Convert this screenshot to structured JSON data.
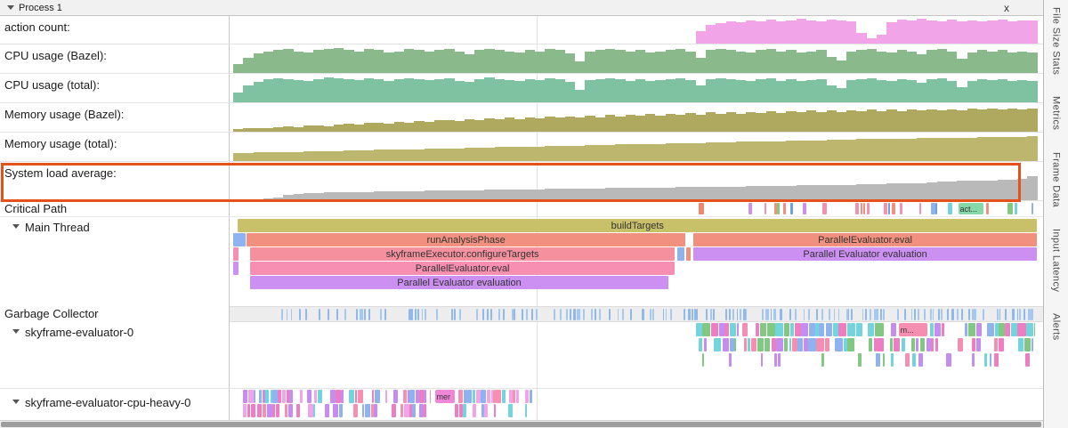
{
  "header": {
    "process_label": "Process 1",
    "close_label": "x"
  },
  "sidebar_tabs": [
    {
      "label": "File Size Stats"
    },
    {
      "label": "Metrics"
    },
    {
      "label": "Frame Data"
    },
    {
      "label": "Input Latency"
    },
    {
      "label": "Alerts"
    }
  ],
  "highlight": {
    "track": "System load average:",
    "color": "#e4511a"
  },
  "counters": [
    {
      "name": "action count:",
      "color": "#f2a4e8",
      "scale": 0.95,
      "heights": [
        0,
        0,
        0,
        0,
        0,
        0,
        0,
        0,
        0,
        0,
        0,
        0,
        0,
        0,
        0,
        0,
        0,
        0,
        0,
        0,
        0,
        0,
        0,
        0,
        0,
        0,
        0,
        0,
        0,
        0,
        0,
        0,
        0,
        0,
        0,
        0,
        0,
        0,
        0,
        0,
        0,
        0,
        0,
        0,
        0,
        0,
        0.5,
        0.78,
        0.85,
        0.9,
        0.86,
        0.95,
        0.9,
        0.97,
        0.92,
        0.96,
        1,
        0.95,
        0.9,
        0.97,
        0.93,
        0.9,
        0.45,
        0.22,
        0.35,
        0.88,
        0.97,
        0.93,
        1,
        0.95,
        0.9,
        0.97,
        0.92,
        0.96,
        0.9,
        0.95,
        0.97,
        0.9,
        0.93,
        0.96
      ]
    },
    {
      "name": "CPU usage (Bazel):",
      "color": "#8aba8c",
      "scale": 0.95,
      "heights": [
        0.35,
        0.6,
        0.78,
        0.85,
        0.9,
        0.95,
        0.85,
        0.8,
        0.9,
        0.96,
        1,
        0.9,
        0.84,
        0.95,
        0.9,
        0.8,
        0.86,
        0.95,
        0.9,
        0.85,
        0.9,
        0.95,
        0.84,
        0.75,
        0.9,
        0.96,
        0.9,
        0.85,
        0.8,
        0.9,
        0.86,
        0.95,
        0.9,
        0.78,
        0.45,
        0.85,
        0.9,
        0.95,
        0.9,
        0.84,
        0.9,
        0.8,
        0.86,
        0.9,
        0.95,
        0.85,
        0.6,
        0.9,
        0.95,
        0.9,
        0.85,
        0.8,
        0.9,
        0.95,
        0.84,
        0.9,
        0.8,
        0.86,
        0.9,
        0.62,
        0.5,
        0.85,
        0.9,
        0.95,
        0.85,
        0.8,
        0.9,
        0.85,
        0.75,
        0.9,
        0.95,
        0.84,
        0.55,
        0.8,
        0.9,
        0.86,
        0.9,
        0.8,
        0.85,
        0.82
      ]
    },
    {
      "name": "CPU usage (total):",
      "color": "#7fc2a2",
      "scale": 0.95,
      "heights": [
        0.4,
        0.65,
        0.8,
        0.9,
        0.95,
        0.9,
        0.88,
        0.84,
        0.92,
        0.98,
        0.95,
        0.92,
        0.88,
        0.96,
        0.92,
        0.84,
        0.9,
        0.96,
        0.92,
        0.88,
        0.92,
        0.96,
        0.86,
        0.8,
        0.92,
        0.98,
        0.92,
        0.88,
        0.84,
        0.92,
        0.88,
        0.96,
        0.92,
        0.82,
        0.5,
        0.88,
        0.92,
        0.96,
        0.92,
        0.86,
        0.92,
        0.84,
        0.88,
        0.92,
        0.96,
        0.88,
        0.65,
        0.92,
        0.96,
        0.92,
        0.88,
        0.84,
        0.92,
        0.96,
        0.86,
        0.92,
        0.84,
        0.88,
        0.92,
        0.66,
        0.55,
        0.88,
        0.92,
        0.96,
        0.88,
        0.84,
        0.92,
        0.88,
        0.78,
        0.92,
        0.96,
        0.86,
        0.6,
        0.84,
        0.92,
        0.88,
        0.92,
        0.84,
        0.88,
        0.85
      ]
    },
    {
      "name": "Memory usage (Bazel):",
      "color": "#aea95f",
      "scale": 1,
      "heights": [
        0.1,
        0.12,
        0.15,
        0.13,
        0.18,
        0.2,
        0.17,
        0.22,
        0.25,
        0.2,
        0.28,
        0.3,
        0.26,
        0.32,
        0.35,
        0.3,
        0.38,
        0.35,
        0.4,
        0.36,
        0.42,
        0.45,
        0.4,
        0.48,
        0.44,
        0.5,
        0.46,
        0.52,
        0.48,
        0.55,
        0.5,
        0.56,
        0.52,
        0.58,
        0.54,
        0.6,
        0.55,
        0.62,
        0.57,
        0.64,
        0.6,
        0.66,
        0.61,
        0.68,
        0.63,
        0.7,
        0.65,
        0.72,
        0.66,
        0.74,
        0.68,
        0.75,
        0.7,
        0.76,
        0.71,
        0.78,
        0.72,
        0.79,
        0.74,
        0.8,
        0.75,
        0.81,
        0.76,
        0.82,
        0.77,
        0.83,
        0.78,
        0.84,
        0.79,
        0.85,
        0.8,
        0.85,
        0.81,
        0.86,
        0.82,
        0.86,
        0.83,
        0.87,
        0.84,
        0.88
      ]
    },
    {
      "name": "Memory usage (total):",
      "color": "#bcb66e",
      "scale": 1,
      "heights": [
        0.3,
        0.3,
        0.32,
        0.32,
        0.34,
        0.34,
        0.35,
        0.36,
        0.36,
        0.38,
        0.38,
        0.4,
        0.4,
        0.41,
        0.42,
        0.42,
        0.44,
        0.44,
        0.45,
        0.46,
        0.46,
        0.48,
        0.48,
        0.5,
        0.5,
        0.51,
        0.52,
        0.52,
        0.54,
        0.54,
        0.55,
        0.56,
        0.56,
        0.58,
        0.58,
        0.6,
        0.6,
        0.61,
        0.62,
        0.62,
        0.64,
        0.64,
        0.65,
        0.66,
        0.66,
        0.68,
        0.68,
        0.7,
        0.7,
        0.71,
        0.72,
        0.72,
        0.74,
        0.74,
        0.75,
        0.76,
        0.76,
        0.78,
        0.78,
        0.8,
        0.8,
        0.81,
        0.82,
        0.82,
        0.84,
        0.84,
        0.85,
        0.85,
        0.86,
        0.86,
        0.87,
        0.87,
        0.88,
        0.88,
        0.89,
        0.89,
        0.9,
        0.9,
        0.91,
        0.92
      ]
    },
    {
      "name": "System load average:",
      "color": "#b9b9b9",
      "scale": 0.72,
      "heights": [
        0.04,
        0.05,
        0.05,
        0.06,
        0.1,
        0.22,
        0.25,
        0.27,
        0.28,
        0.3,
        0.3,
        0.31,
        0.32,
        0.32,
        0.33,
        0.34,
        0.34,
        0.35,
        0.35,
        0.36,
        0.36,
        0.37,
        0.38,
        0.38,
        0.39,
        0.4,
        0.4,
        0.41,
        0.41,
        0.42,
        0.42,
        0.43,
        0.43,
        0.44,
        0.44,
        0.45,
        0.45,
        0.46,
        0.46,
        0.47,
        0.47,
        0.48,
        0.48,
        0.49,
        0.5,
        0.5,
        0.5,
        0.51,
        0.51,
        0.52,
        0.52,
        0.53,
        0.53,
        0.54,
        0.54,
        0.55,
        0.56,
        0.56,
        0.57,
        0.58,
        0.58,
        0.59,
        0.6,
        0.6,
        0.62,
        0.63,
        0.64,
        0.65,
        0.66,
        0.68,
        0.7,
        0.72,
        0.73,
        0.74,
        0.75,
        0.76,
        0.77,
        0.78,
        0.8,
        0.92
      ]
    }
  ],
  "critical_path": {
    "label": "Critical Path",
    "lead_segment": {
      "x": 0.578,
      "w": 0.007,
      "c": "#f0876a"
    },
    "chip": {
      "x": 0.901,
      "w": 0.031,
      "c": "#86d8a8",
      "label": "act..."
    },
    "ticks": {
      "seed": 5,
      "density": 0.5,
      "tick": [
        0.002,
        0.0055
      ],
      "gap": 0.0045,
      "regions": [
        [
          0.635,
          0.897
        ],
        [
          0.936,
          0.995
        ]
      ]
    },
    "palette": [
      "#8fb2f0",
      "#74d4de",
      "#f78fb2",
      "#82c882",
      "#cc8ff2",
      "#f2907f",
      "#6fa0e0"
    ]
  },
  "main_thread": {
    "label": "Main Thread",
    "rows": [
      [
        {
          "x": 0.006,
          "w": 0.993,
          "c": "#c9c06a",
          "label": "buildTargets"
        }
      ],
      [
        {
          "x": 0.0,
          "w": 0.015,
          "c": "#8fb2f0"
        },
        {
          "x": 0.017,
          "w": 0.545,
          "c": "#f2907f",
          "label": "runAnalysisPhase"
        },
        {
          "x": 0.572,
          "w": 0.427,
          "c": "#f2907f",
          "label": "ParallelEvaluator.eval"
        }
      ],
      [
        {
          "x": 0.0,
          "w": 0.007,
          "c": "#f78fb2"
        },
        {
          "x": 0.021,
          "w": 0.528,
          "c": "#f5909e",
          "label": "skyframeExecutor.configureTargets"
        },
        {
          "x": 0.552,
          "w": 0.009,
          "c": "#8fb2f0"
        },
        {
          "x": 0.563,
          "w": 0.006,
          "c": "#f2907f"
        },
        {
          "x": 0.572,
          "w": 0.427,
          "c": "#cc8ff2",
          "label": "Parallel Evaluator evaluation"
        }
      ],
      [
        {
          "x": 0.0,
          "w": 0.007,
          "c": "#cc8ff2"
        },
        {
          "x": 0.021,
          "w": 0.528,
          "c": "#f78fb2",
          "label": "ParallelEvaluator.eval"
        }
      ],
      [
        {
          "x": 0.021,
          "w": 0.52,
          "c": "#cc8ff2",
          "label": "Parallel Evaluator evaluation"
        }
      ]
    ]
  },
  "garbage_collector": {
    "label": "Garbage Collector",
    "ticks": {
      "seed": 9,
      "density": 0.55,
      "tick": [
        0.0015,
        0.0028
      ],
      "gap": 0.004,
      "regions": [
        [
          0.03,
          0.545
        ],
        [
          0.56,
          0.995
        ]
      ]
    },
    "palette": [
      "#a5c8f2",
      "#8fb8ec"
    ]
  },
  "evaluator0": {
    "label": "skyframe-evaluator-0",
    "chip": {
      "x": 0.827,
      "w": 0.036,
      "c": "#f48fb1",
      "label": "m..."
    },
    "rows": [
      {
        "seed": 11,
        "density": 0.85,
        "tick": [
          0.004,
          0.011
        ],
        "gap": 0.0015,
        "regions": [
          [
            0.575,
            0.628
          ],
          [
            0.633,
            0.782
          ],
          [
            0.789,
            0.824
          ],
          [
            0.866,
            0.884
          ],
          [
            0.898,
            0.997
          ]
        ]
      },
      {
        "seed": 12,
        "density": 0.7,
        "tick": [
          0.003,
          0.01
        ],
        "gap": 0.002,
        "regions": [
          [
            0.578,
            0.625
          ],
          [
            0.635,
            0.78
          ],
          [
            0.79,
            0.88
          ],
          [
            0.9,
            0.995
          ]
        ]
      },
      {
        "seed": 13,
        "density": 0.2,
        "tick": [
          0.002,
          0.006
        ],
        "gap": 0.005,
        "regions": [
          [
            0.578,
            0.995
          ]
        ]
      }
    ],
    "palette": [
      "#82c882",
      "#f48fb1",
      "#ee7ec4",
      "#74d4de",
      "#c58df0",
      "#8fb2f0"
    ]
  },
  "cpu_heavy": {
    "label": "skyframe-evaluator-cpu-heavy-0",
    "chip": {
      "x": 0.2506,
      "w": 0.025,
      "c": "#ef86d8",
      "label": "mer"
    },
    "rows": [
      {
        "seed": 41,
        "density": 0.8,
        "tick": [
          0.002,
          0.007
        ],
        "gap": 0.001,
        "regions": [
          [
            0.012,
            0.245
          ],
          [
            0.28,
            0.372
          ]
        ]
      },
      {
        "seed": 42,
        "density": 0.62,
        "tick": [
          0.002,
          0.007
        ],
        "gap": 0.0015,
        "regions": [
          [
            0.012,
            0.24
          ],
          [
            0.275,
            0.365
          ]
        ]
      }
    ],
    "palette": [
      "#f78fb2",
      "#ee7ec4",
      "#74d4de",
      "#c58df0",
      "#8fb2f0",
      "#f2a4e8"
    ]
  }
}
